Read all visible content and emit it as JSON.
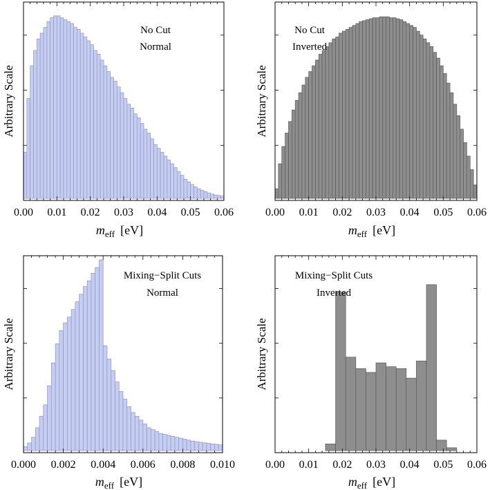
{
  "figure": {
    "ylabel": "Arbitrary Scale",
    "xlabel_main": "m",
    "xlabel_sub": "eff",
    "xlabel_unit": "[eV]"
  },
  "colors": {
    "blue_fill": "#c5cdf3",
    "blue_edge": "#8e96be",
    "gray_fill": "#8e8e8e",
    "gray_edge": "#5a5a5a"
  },
  "chart_data": [
    {
      "type": "bar",
      "title_lines": [
        "No Cut",
        "Normal"
      ],
      "xlabel": "m_eff [eV]",
      "ylabel": "Arbitrary Scale",
      "xlim": [
        0,
        0.06
      ],
      "ylim": [
        0,
        1
      ],
      "xticks": [
        "0.00",
        "0.01",
        "0.02",
        "0.03",
        "0.04",
        "0.05",
        "0.06"
      ],
      "bin_width": 0.001,
      "bin_start": 0.0,
      "color": "blue",
      "values": [
        0.24,
        0.52,
        0.69,
        0.77,
        0.83,
        0.86,
        0.89,
        0.92,
        0.94,
        0.95,
        0.95,
        0.94,
        0.93,
        0.92,
        0.91,
        0.89,
        0.88,
        0.86,
        0.84,
        0.82,
        0.8,
        0.77,
        0.75,
        0.72,
        0.69,
        0.66,
        0.63,
        0.61,
        0.58,
        0.55,
        0.52,
        0.49,
        0.47,
        0.44,
        0.42,
        0.39,
        0.36,
        0.34,
        0.31,
        0.28,
        0.26,
        0.24,
        0.22,
        0.2,
        0.18,
        0.16,
        0.14,
        0.12,
        0.1,
        0.085,
        0.072,
        0.06,
        0.05,
        0.042,
        0.035,
        0.028,
        0.022,
        0.018,
        0.015,
        0.012
      ]
    },
    {
      "type": "bar",
      "title_lines": [
        "No Cut",
        "Inverted"
      ],
      "xlabel": "m_eff [eV]",
      "ylabel": "Arbitrary Scale",
      "xlim": [
        0,
        0.06
      ],
      "ylim": [
        0,
        1
      ],
      "xticks": [
        "0.00",
        "0.01",
        "0.02",
        "0.03",
        "0.04",
        "0.05",
        "0.06"
      ],
      "bin_width": 0.001,
      "bin_start": 0.0,
      "color": "gray",
      "values": [
        0.05,
        0.18,
        0.27,
        0.34,
        0.4,
        0.46,
        0.51,
        0.55,
        0.59,
        0.63,
        0.66,
        0.69,
        0.72,
        0.75,
        0.77,
        0.79,
        0.81,
        0.83,
        0.84,
        0.86,
        0.87,
        0.88,
        0.89,
        0.9,
        0.91,
        0.92,
        0.925,
        0.93,
        0.935,
        0.94,
        0.94,
        0.945,
        0.945,
        0.945,
        0.94,
        0.94,
        0.935,
        0.93,
        0.92,
        0.91,
        0.9,
        0.89,
        0.87,
        0.85,
        0.83,
        0.81,
        0.79,
        0.76,
        0.73,
        0.69,
        0.65,
        0.6,
        0.55,
        0.49,
        0.43,
        0.36,
        0.29,
        0.22,
        0.15,
        0.07
      ]
    },
    {
      "type": "bar",
      "title_lines": [
        "Mixing−Split Cuts",
        "Normal"
      ],
      "xlabel": "m_eff [eV]",
      "ylabel": "Arbitrary Scale",
      "xlim": [
        0,
        0.01
      ],
      "ylim": [
        0,
        1
      ],
      "xticks": [
        "0.000",
        "0.002",
        "0.004",
        "0.006",
        "0.008",
        "0.010"
      ],
      "bin_width": 0.0002,
      "bin_start": 0.0,
      "color": "blue",
      "values": [
        0.02,
        0.04,
        0.07,
        0.12,
        0.18,
        0.24,
        0.34,
        0.46,
        0.56,
        0.63,
        0.67,
        0.7,
        0.74,
        0.78,
        0.82,
        0.86,
        0.89,
        0.93,
        0.96,
        1.0,
        0.55,
        0.48,
        0.42,
        0.36,
        0.31,
        0.27,
        0.23,
        0.2,
        0.18,
        0.16,
        0.14,
        0.12,
        0.11,
        0.1,
        0.09,
        0.085,
        0.08,
        0.075,
        0.07,
        0.065,
        0.06,
        0.055,
        0.05,
        0.047,
        0.044,
        0.041,
        0.038,
        0.035,
        0.033,
        0.03
      ]
    },
    {
      "type": "bar",
      "title_lines": [
        "Mixing−Split Cuts",
        "Inverted"
      ],
      "xlabel": "m_eff [eV]",
      "ylabel": "Arbitrary Scale",
      "xlim": [
        0,
        0.06
      ],
      "ylim": [
        0,
        1
      ],
      "xticks": [
        "0.00",
        "0.01",
        "0.02",
        "0.03",
        "0.04",
        "0.05",
        "0.06"
      ],
      "bin_width": 0.003,
      "bin_start": 0.015,
      "color": "gray",
      "values": [
        0.035,
        0.83,
        0.49,
        0.43,
        0.41,
        0.46,
        0.44,
        0.43,
        0.38,
        0.47,
        0.87,
        0.055,
        0.015
      ]
    }
  ]
}
